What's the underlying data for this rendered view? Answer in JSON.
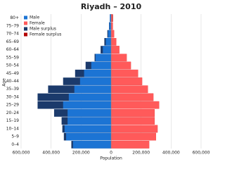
{
  "chart_data": {
    "type": "pyramid",
    "title": "Riyadh – 2010",
    "x_label": "Population",
    "y_label": "Age",
    "categories": [
      "0–4",
      "5–9",
      "10–14",
      "15–19",
      "20–24",
      "25–29",
      "30–34",
      "35–39",
      "40–44",
      "45–49",
      "50–54",
      "55–59",
      "60–64",
      "65–69",
      "70–74",
      "75–79",
      "80+"
    ],
    "series": [
      {
        "name": "Male",
        "color": "#1c74d4",
        "surplus_name": "Male surplus",
        "surplus_color": "#1b3a6b",
        "side": "left",
        "values": [
          265000,
          315000,
          325000,
          330000,
          380000,
          490000,
          490000,
          420000,
          320000,
          240000,
          170000,
          110000,
          70000,
          45000,
          25000,
          14000,
          8000
        ]
      },
      {
        "name": "Female",
        "color": "#ff5a5a",
        "surplus_name": "Female surplus",
        "surplus_color": "#b30000",
        "side": "right",
        "values": [
          254000,
          300000,
          310000,
          290000,
          290000,
          320000,
          282000,
          245000,
          207000,
          180000,
          132000,
          104000,
          55000,
          35000,
          20000,
          12000,
          12000
        ]
      }
    ],
    "xlim": [
      -600000,
      600000
    ],
    "xticks": [
      {
        "value": -600000,
        "label": "600,000"
      },
      {
        "value": -400000,
        "label": "400,000"
      },
      {
        "value": -200000,
        "label": "200,000"
      },
      0,
      {
        "value": 200000,
        "label": "200,000"
      },
      {
        "value": 400000,
        "label": "400,000"
      },
      {
        "value": 600000,
        "label": "600,000"
      }
    ],
    "grid": true
  }
}
